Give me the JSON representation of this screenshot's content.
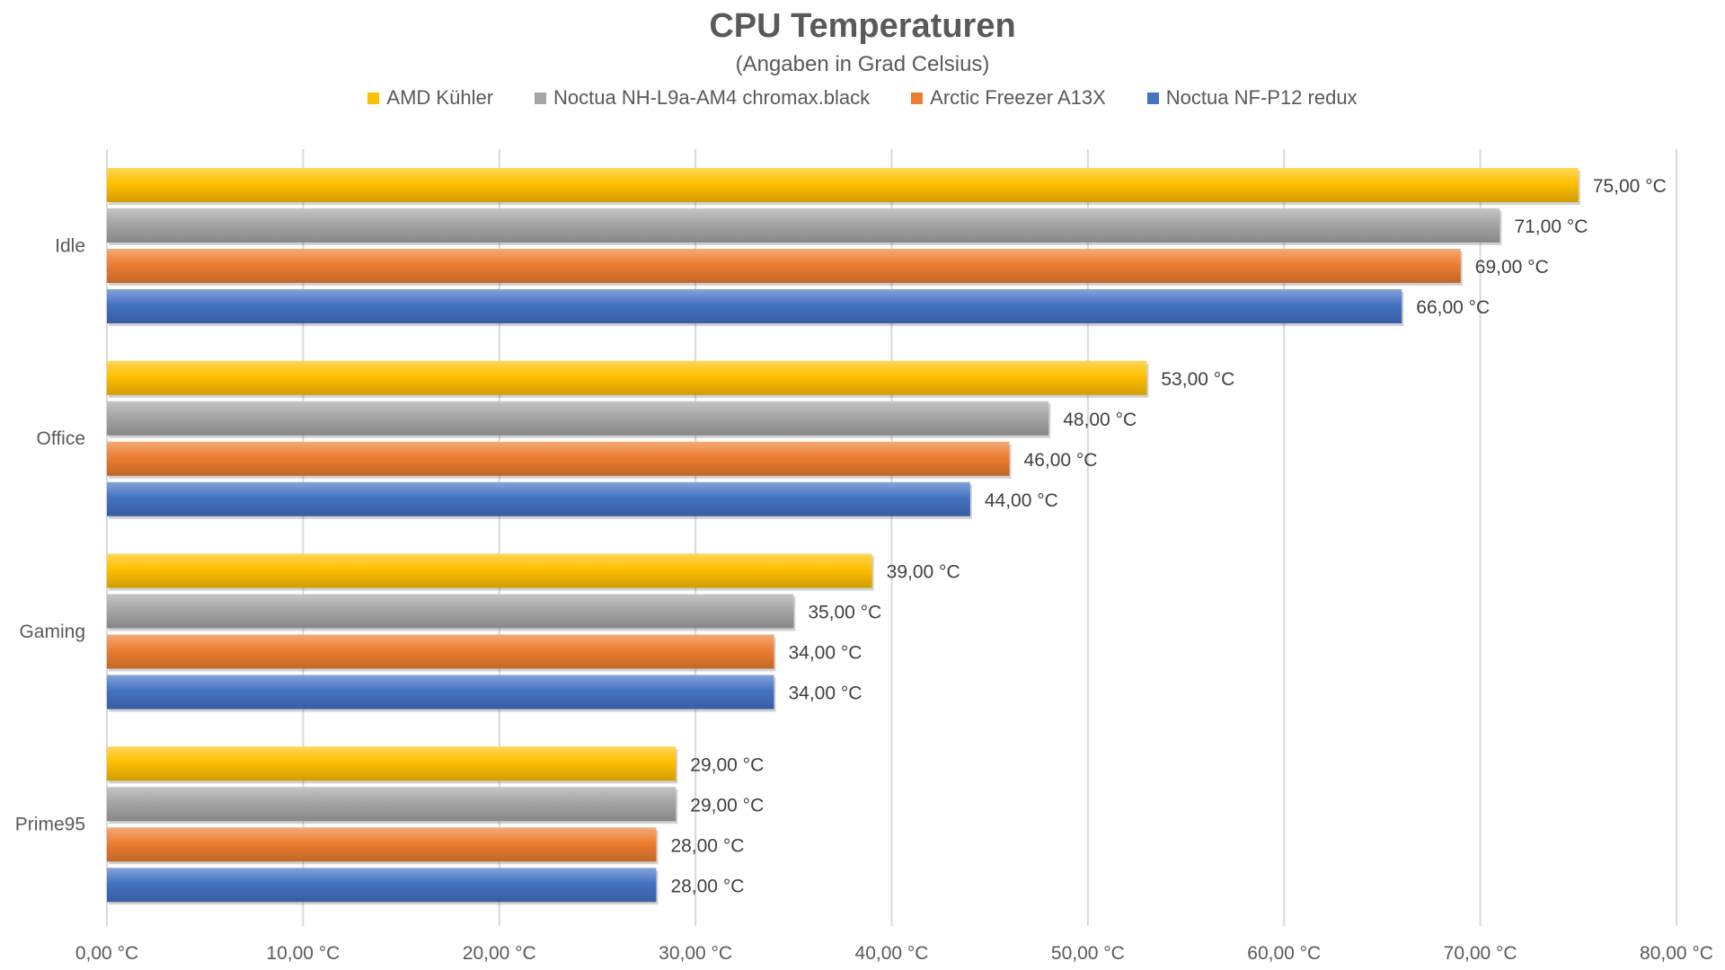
{
  "chart_data": {
    "type": "bar",
    "orientation": "horizontal",
    "title": "CPU Temperaturen",
    "subtitle": "(Angaben in Grad Celsius)",
    "xlabel": "",
    "ylabel": "",
    "categories": [
      "Idle",
      "Office",
      "Gaming",
      "Prime95"
    ],
    "series": [
      {
        "name": "AMD Kühler",
        "color": "#FFC000",
        "values": [
          75,
          53,
          39,
          29
        ],
        "labels": [
          "75,00 °C",
          "53,00 °C",
          "39,00 °C",
          "29,00 °C"
        ]
      },
      {
        "name": "Noctua NH-L9a-AM4 chromax.black",
        "color": "#A5A5A5",
        "values": [
          71,
          48,
          35,
          29
        ],
        "labels": [
          "71,00 °C",
          "48,00 °C",
          "35,00 °C",
          "29,00 °C"
        ]
      },
      {
        "name": "Arctic Freezer A13X",
        "color": "#ED7D31",
        "values": [
          69,
          46,
          34,
          28
        ],
        "labels": [
          "69,00 °C",
          "46,00 °C",
          "34,00 °C",
          "28,00 °C"
        ]
      },
      {
        "name": "Noctua NF-P12 redux",
        "color": "#4472C4",
        "values": [
          66,
          44,
          34,
          28
        ],
        "labels": [
          "66,00 °C",
          "44,00 °C",
          "34,00 °C",
          "28,00 °C"
        ]
      }
    ],
    "xlim": [
      0,
      80
    ],
    "ticks": [
      0,
      10,
      20,
      30,
      40,
      50,
      60,
      70,
      80
    ],
    "tick_labels": [
      "0,00 °C",
      "10,00 °C",
      "20,00 °C",
      "30,00 °C",
      "40,00 °C",
      "50,00 °C",
      "60,00 °C",
      "70,00 °C",
      "80,00 °C"
    ],
    "grid": true,
    "legend_position": "top"
  }
}
